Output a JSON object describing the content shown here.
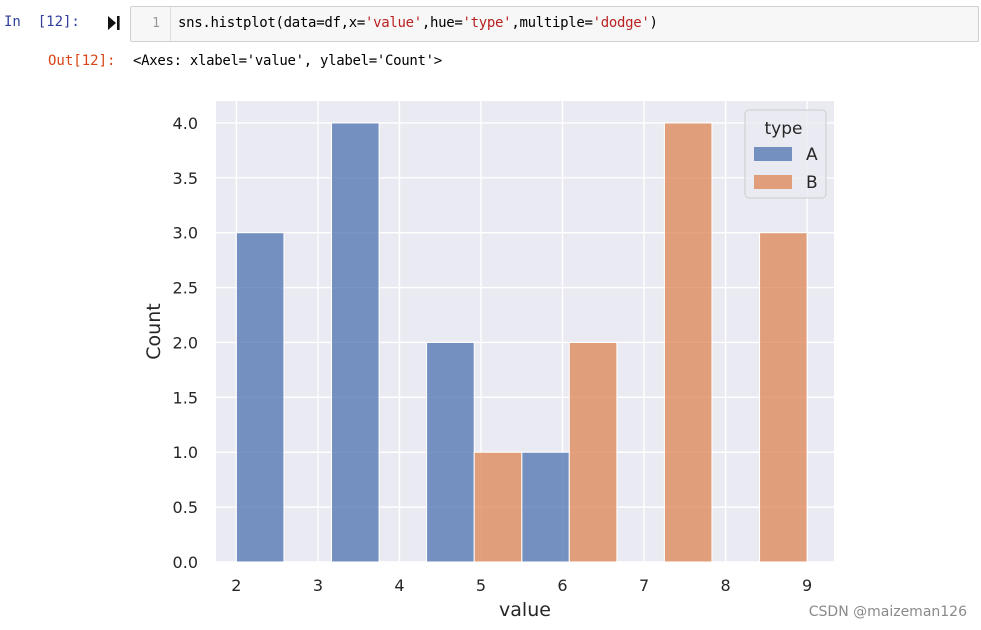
{
  "cell": {
    "in_prompt": "In  [12]:",
    "line_number": "1",
    "code": {
      "p1": "sns.histplot(data=df,x=",
      "s1": "'value'",
      "p2": ",hue=",
      "s2": "'type'",
      "p3": ",multiple=",
      "s3": "'dodge'",
      "p4": ")"
    },
    "out_prompt": "Out[12]:",
    "output_text": "<Axes: xlabel='value', ylabel='Count'>"
  },
  "colors": {
    "A": "#4c72b0",
    "B": "#dd8452",
    "plot_bg": "#eaeaf2",
    "grid": "#ffffff"
  },
  "chart_data": {
    "type": "bar",
    "xlabel": "value",
    "ylabel": "Count",
    "xlim": [
      1.75,
      9.33
    ],
    "ylim": [
      0,
      4.2
    ],
    "x_ticks": [
      "2",
      "3",
      "4",
      "5",
      "6",
      "7",
      "8",
      "9"
    ],
    "y_ticks": [
      "0.0",
      "0.5",
      "1.0",
      "1.5",
      "2.0",
      "2.5",
      "3.0",
      "3.5",
      "4.0"
    ],
    "grid": true,
    "legend": {
      "title": "type",
      "position": "top-right",
      "entries": [
        "A",
        "B"
      ]
    },
    "series": [
      {
        "name": "A",
        "bars": [
          {
            "x0": 2.0,
            "x1": 2.583,
            "value": 3
          },
          {
            "x0": 3.167,
            "x1": 3.75,
            "value": 4
          },
          {
            "x0": 4.333,
            "x1": 4.917,
            "value": 2
          },
          {
            "x0": 5.5,
            "x1": 6.083,
            "value": 1
          }
        ]
      },
      {
        "name": "B",
        "bars": [
          {
            "x0": 4.917,
            "x1": 5.5,
            "value": 1
          },
          {
            "x0": 6.083,
            "x1": 6.667,
            "value": 2
          },
          {
            "x0": 7.25,
            "x1": 7.833,
            "value": 4
          },
          {
            "x0": 8.417,
            "x1": 9.0,
            "value": 3
          }
        ]
      }
    ]
  },
  "watermark": "CSDN @maizeman126"
}
